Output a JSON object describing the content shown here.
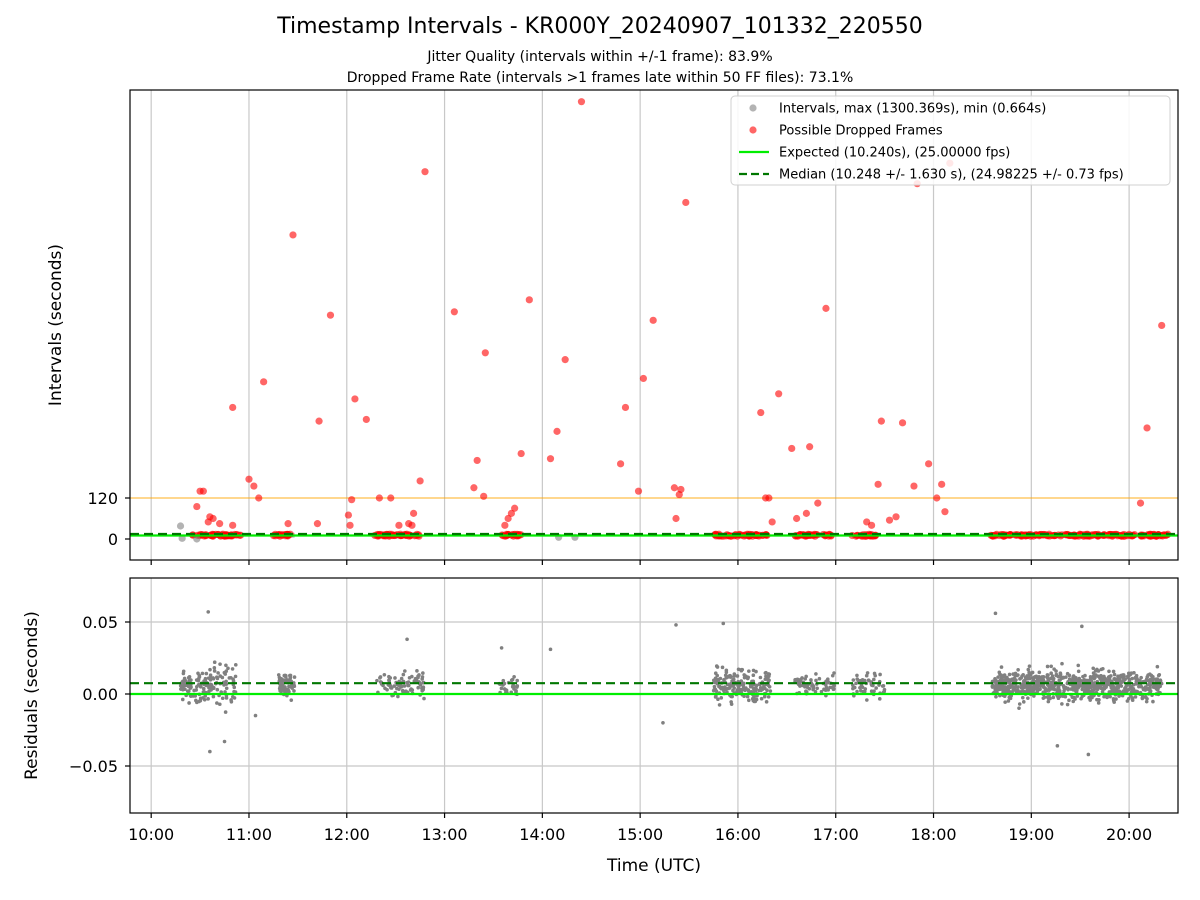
{
  "title": "Timestamp Intervals - KR000Y_20240907_101332_220550",
  "subtitle_1": "Jitter Quality (intervals within +/-1 frame): 83.9%",
  "subtitle_2": "Dropped Frame Rate (intervals >1 frames late within 50 FF files): 73.1%",
  "colors": {
    "intervals": "#808080",
    "dropped": "#ff0000",
    "expected": "#00ee00",
    "median": "#007700",
    "threshold": "#ffa500",
    "grid": "#c8c8c8"
  },
  "chart_data": [
    {
      "type": "scatter",
      "ylabel": "Intervals (seconds)",
      "xlim": [
        "09:47",
        "20:30"
      ],
      "yticks": [
        0,
        120
      ],
      "ytick_labels": [
        "0",
        "120"
      ],
      "threshold_line": 120,
      "grid": "x",
      "legend_position": "top-right",
      "legend": [
        {
          "label": "Intervals, max (1300.369s), min (0.664s)",
          "kind": "marker",
          "color": "#808080"
        },
        {
          "label": "Possible Dropped Frames",
          "kind": "marker",
          "color": "#ff0000"
        },
        {
          "label": "Expected (10.240s), (25.00000 fps)",
          "kind": "line",
          "color": "#00ee00"
        },
        {
          "label": "Median (10.248 +/- 1.630 s), (24.98225 +/- 0.73 fps)",
          "kind": "dashed",
          "color": "#007700"
        }
      ],
      "expected_value": 10.24,
      "median_value": 10.248,
      "series": [
        {
          "name": "Possible Dropped Frames",
          "points": [
            {
              "x": "10:28",
              "y": 95
            },
            {
              "x": "10:30",
              "y": 140
            },
            {
              "x": "10:32",
              "y": 140
            },
            {
              "x": "10:35",
              "y": 50
            },
            {
              "x": "10:36",
              "y": 65
            },
            {
              "x": "10:38",
              "y": 60
            },
            {
              "x": "10:42",
              "y": 45
            },
            {
              "x": "10:50",
              "y": 385
            },
            {
              "x": "10:50",
              "y": 40
            },
            {
              "x": "11:00",
              "y": 175
            },
            {
              "x": "11:03",
              "y": 155
            },
            {
              "x": "11:06",
              "y": 120
            },
            {
              "x": "11:09",
              "y": 460
            },
            {
              "x": "11:24",
              "y": 45
            },
            {
              "x": "11:27",
              "y": 890
            },
            {
              "x": "11:42",
              "y": 45
            },
            {
              "x": "11:43",
              "y": 345
            },
            {
              "x": "11:50",
              "y": 655
            },
            {
              "x": "12:01",
              "y": 70
            },
            {
              "x": "12:02",
              "y": 40
            },
            {
              "x": "12:03",
              "y": 115
            },
            {
              "x": "12:05",
              "y": 410
            },
            {
              "x": "12:12",
              "y": 350
            },
            {
              "x": "12:20",
              "y": 120
            },
            {
              "x": "12:27",
              "y": 120
            },
            {
              "x": "12:32",
              "y": 40
            },
            {
              "x": "12:38",
              "y": 45
            },
            {
              "x": "12:40",
              "y": 40
            },
            {
              "x": "12:41",
              "y": 75
            },
            {
              "x": "12:45",
              "y": 170
            },
            {
              "x": "12:48",
              "y": 1075
            },
            {
              "x": "13:06",
              "y": 665
            },
            {
              "x": "13:18",
              "y": 150
            },
            {
              "x": "13:20",
              "y": 230
            },
            {
              "x": "13:24",
              "y": 125
            },
            {
              "x": "13:25",
              "y": 545
            },
            {
              "x": "13:37",
              "y": 40
            },
            {
              "x": "13:39",
              "y": 60
            },
            {
              "x": "13:41",
              "y": 75
            },
            {
              "x": "13:43",
              "y": 90
            },
            {
              "x": "13:47",
              "y": 250
            },
            {
              "x": "13:52",
              "y": 700
            },
            {
              "x": "14:05",
              "y": 235
            },
            {
              "x": "14:09",
              "y": 315
            },
            {
              "x": "14:14",
              "y": 525
            },
            {
              "x": "14:24",
              "y": 1280
            },
            {
              "x": "14:48",
              "y": 220
            },
            {
              "x": "14:51",
              "y": 385
            },
            {
              "x": "14:59",
              "y": 140
            },
            {
              "x": "15:02",
              "y": 470
            },
            {
              "x": "15:08",
              "y": 640
            },
            {
              "x": "15:21",
              "y": 150
            },
            {
              "x": "15:22",
              "y": 60
            },
            {
              "x": "15:24",
              "y": 130
            },
            {
              "x": "15:25",
              "y": 145
            },
            {
              "x": "15:28",
              "y": 985
            },
            {
              "x": "16:14",
              "y": 370
            },
            {
              "x": "16:17",
              "y": 120
            },
            {
              "x": "16:19",
              "y": 120
            },
            {
              "x": "16:21",
              "y": 50
            },
            {
              "x": "16:25",
              "y": 425
            },
            {
              "x": "16:33",
              "y": 265
            },
            {
              "x": "16:36",
              "y": 60
            },
            {
              "x": "16:42",
              "y": 75
            },
            {
              "x": "16:44",
              "y": 270
            },
            {
              "x": "16:49",
              "y": 105
            },
            {
              "x": "16:54",
              "y": 675
            },
            {
              "x": "17:19",
              "y": 50
            },
            {
              "x": "17:22",
              "y": 40
            },
            {
              "x": "17:26",
              "y": 160
            },
            {
              "x": "17:28",
              "y": 345
            },
            {
              "x": "17:33",
              "y": 55
            },
            {
              "x": "17:37",
              "y": 65
            },
            {
              "x": "17:41",
              "y": 340
            },
            {
              "x": "17:48",
              "y": 155
            },
            {
              "x": "17:50",
              "y": 1040
            },
            {
              "x": "17:57",
              "y": 220
            },
            {
              "x": "18:02",
              "y": 120
            },
            {
              "x": "18:05",
              "y": 160
            },
            {
              "x": "18:07",
              "y": 80
            },
            {
              "x": "18:10",
              "y": 1100
            },
            {
              "x": "20:07",
              "y": 105
            },
            {
              "x": "20:11",
              "y": 325
            },
            {
              "x": "20:20",
              "y": 625
            }
          ]
        },
        {
          "name": "Intervals",
          "points": [
            {
              "x": "10:18",
              "y": 38
            },
            {
              "x": "10:19",
              "y": 2
            },
            {
              "x": "10:28",
              "y": 0
            },
            {
              "x": "14:10",
              "y": 5
            },
            {
              "x": "14:20",
              "y": 5
            }
          ]
        }
      ],
      "clusters": [
        [
          "10:25",
          "10:55"
        ],
        [
          "11:15",
          "11:28"
        ],
        [
          "12:16",
          "12:45"
        ],
        [
          "13:35",
          "13:48"
        ],
        [
          "15:45",
          "16:18"
        ],
        [
          "16:35",
          "16:58"
        ],
        [
          "17:10",
          "17:25"
        ],
        [
          "18:35",
          "20:25"
        ]
      ]
    },
    {
      "type": "scatter",
      "xlabel": "Time (UTC)",
      "ylabel": "Residuals (seconds)",
      "ylim": [
        -0.08,
        0.08
      ],
      "yticks": [
        0.05,
        0.0,
        -0.05
      ],
      "ytick_labels": [
        "0.05",
        "0.00",
        "−0.05"
      ],
      "xticks": [
        "10:00",
        "11:00",
        "12:00",
        "13:00",
        "14:00",
        "15:00",
        "16:00",
        "17:00",
        "18:00",
        "19:00",
        "20:00"
      ],
      "xlim": [
        "09:47",
        "20:30"
      ],
      "expected_residual": 0.0,
      "median_residual": 0.0075,
      "grid": "both",
      "clusters": [
        {
          "range": [
            "10:18",
            "10:30"
          ],
          "count": 60,
          "spread": 0.02
        },
        {
          "range": [
            "10:30",
            "10:52"
          ],
          "count": 90,
          "spread": 0.025
        },
        {
          "range": [
            "11:18",
            "11:28"
          ],
          "count": 70,
          "spread": 0.015
        },
        {
          "range": [
            "12:18",
            "12:48"
          ],
          "count": 90,
          "spread": 0.015
        },
        {
          "range": [
            "13:33",
            "13:45"
          ],
          "count": 30,
          "spread": 0.012
        },
        {
          "range": [
            "15:45",
            "16:20"
          ],
          "count": 190,
          "spread": 0.02
        },
        {
          "range": [
            "16:35",
            "17:00"
          ],
          "count": 70,
          "spread": 0.015
        },
        {
          "range": [
            "17:10",
            "17:30"
          ],
          "count": 50,
          "spread": 0.015
        },
        {
          "range": [
            "18:36",
            "20:20"
          ],
          "count": 800,
          "spread": 0.018
        }
      ],
      "outliers": [
        {
          "x": "10:35",
          "y": 0.057
        },
        {
          "x": "10:36",
          "y": -0.04
        },
        {
          "x": "10:45",
          "y": -0.033
        },
        {
          "x": "11:04",
          "y": -0.015
        },
        {
          "x": "12:37",
          "y": 0.038
        },
        {
          "x": "13:35",
          "y": 0.032
        },
        {
          "x": "14:05",
          "y": 0.031
        },
        {
          "x": "15:22",
          "y": 0.048
        },
        {
          "x": "15:14",
          "y": -0.02
        },
        {
          "x": "15:51",
          "y": 0.049
        },
        {
          "x": "18:38",
          "y": 0.056
        },
        {
          "x": "19:16",
          "y": -0.036
        },
        {
          "x": "19:35",
          "y": -0.042
        },
        {
          "x": "19:31",
          "y": 0.047
        }
      ]
    }
  ]
}
